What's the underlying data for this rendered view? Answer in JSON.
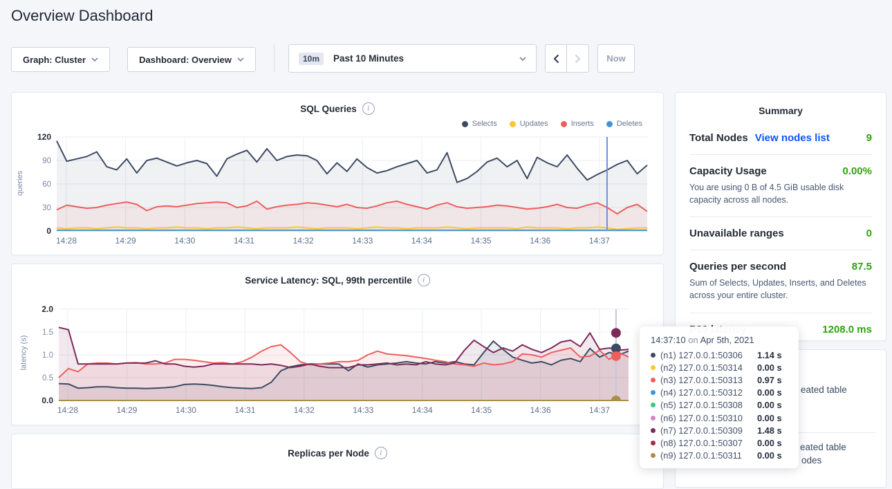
{
  "page": {
    "title": "Overview Dashboard"
  },
  "toolbar": {
    "graph_label": "Graph: Cluster",
    "dashboard_label": "Dashboard: Overview",
    "time_badge": "10m",
    "time_range": "Past 10 Minutes",
    "now_label": "Now"
  },
  "summary": {
    "title": "Summary",
    "rows": [
      {
        "label": "Total Nodes",
        "link": "View nodes list",
        "value": "9"
      },
      {
        "label": "Capacity Usage",
        "value": "0.00%",
        "description": "You are using 0 B of 4.5 GiB usable disk capacity across all nodes."
      },
      {
        "label": "Unavailable ranges",
        "value": "0"
      },
      {
        "label": "Queries per second",
        "value": "87.5",
        "description": "Sum of Selects, Updates, Inserts, and Deletes across your entire cluster."
      },
      {
        "label": "P99 latency",
        "value": "1208.0 ms"
      }
    ]
  },
  "tooltip": {
    "time": "14:37:10",
    "on": "on",
    "date": "Apr 5th, 2021",
    "rows": [
      {
        "color": "#3e4a63",
        "label": "(n1) 127.0.0.1:50306",
        "value": "1.14 s"
      },
      {
        "color": "#ffc533",
        "label": "(n2) 127.0.0.1:50314",
        "value": "0.00 s"
      },
      {
        "color": "#ef5e5e",
        "label": "(n3) 127.0.0.1:50313",
        "value": "0.97 s"
      },
      {
        "color": "#4593d2",
        "label": "(n4) 127.0.0.1:50312",
        "value": "0.00 s"
      },
      {
        "color": "#3cc87f",
        "label": "(n5) 127.0.0.1:50308",
        "value": "0.00 s"
      },
      {
        "color": "#d584c4",
        "label": "(n6) 127.0.0.1:50310",
        "value": "0.00 s"
      },
      {
        "color": "#7c2959",
        "label": "(n7) 127.0.0.1:50309",
        "value": "1.48 s"
      },
      {
        "color": "#a03049",
        "label": "(n8) 127.0.0.1:50307",
        "value": "0.00 s"
      },
      {
        "color": "#ab8d4a",
        "label": "(n9) 127.0.0.1:50311",
        "value": "0.00 s"
      }
    ]
  },
  "events": {
    "fragments": [
      {
        "text": "eated table"
      },
      {
        "text": "eated table"
      },
      {
        "text": "odes"
      }
    ]
  },
  "chart_data": [
    {
      "type": "line",
      "title": "SQL Queries",
      "ylabel": "queries",
      "ylim": [
        0,
        120
      ],
      "yticks": [
        0,
        30,
        60,
        90,
        120
      ],
      "ytick_decimals": 0,
      "grid": true,
      "legend_position": "top-right",
      "x_ticks": [
        "14:28",
        "14:29",
        "14:30",
        "14:31",
        "14:32",
        "14:33",
        "14:34",
        "14:35",
        "14:36",
        "14:37"
      ],
      "draw_order": [
        0,
        2,
        1,
        3
      ],
      "series": [
        {
          "name": "Selects",
          "color": "#3e4a63",
          "fill": "rgba(62,74,99,0.08)",
          "values": [
            115,
            89,
            92,
            95,
            101,
            82,
            78,
            92,
            74,
            90,
            93,
            88,
            83,
            87,
            90,
            86,
            70,
            92,
            98,
            103,
            88,
            105,
            90,
            95,
            97,
            96,
            90,
            73,
            87,
            76,
            92,
            81,
            74,
            77,
            82,
            86,
            90,
            74,
            78,
            100,
            62,
            67,
            76,
            88,
            93,
            82,
            90,
            67,
            94,
            87,
            82,
            97,
            80,
            65,
            72,
            78,
            85,
            90,
            73,
            84
          ]
        },
        {
          "name": "Updates",
          "color": "#ffc533",
          "values": [
            4,
            3,
            4,
            4,
            3,
            4,
            5,
            4,
            4,
            3,
            4,
            4,
            5,
            4,
            4,
            3,
            4,
            4,
            5,
            4,
            3,
            4,
            4,
            4,
            5,
            4,
            3,
            4,
            4,
            4,
            3,
            4,
            5,
            4,
            4,
            3,
            4,
            4,
            4,
            5,
            4,
            3,
            4,
            4,
            4,
            4,
            3,
            5,
            4,
            4,
            4,
            3,
            4,
            4,
            5,
            4,
            2,
            3,
            4,
            4
          ]
        },
        {
          "name": "Inserts",
          "color": "#ef5e5e",
          "fill": "rgba(239,94,94,0.08)",
          "values": [
            27,
            33,
            31,
            29,
            30,
            33,
            35,
            37,
            34,
            26,
            31,
            32,
            31,
            33,
            35,
            36,
            37,
            36,
            30,
            32,
            38,
            28,
            31,
            33,
            34,
            36,
            35,
            33,
            31,
            34,
            30,
            29,
            32,
            36,
            38,
            34,
            31,
            28,
            33,
            36,
            31,
            29,
            30,
            31,
            33,
            32,
            30,
            28,
            29,
            31,
            34,
            30,
            29,
            33,
            36,
            30,
            22,
            30,
            34,
            25
          ]
        },
        {
          "name": "Deletes",
          "color": "#4593d2",
          "values": [
            1,
            1,
            1,
            1,
            1,
            1,
            1,
            1,
            1,
            1,
            1,
            1,
            1,
            1,
            1,
            1,
            1,
            1,
            1,
            1,
            1,
            1,
            1,
            1,
            1,
            1,
            1,
            1,
            1,
            1,
            1,
            1,
            1,
            1,
            1,
            1,
            1,
            1,
            1,
            1,
            1,
            1,
            1,
            1,
            1,
            1,
            1,
            1,
            1,
            1,
            1,
            1,
            1,
            1,
            1,
            1,
            1,
            1,
            1,
            1
          ]
        }
      ],
      "hover": {
        "time": "14:37:10",
        "x_frac": 0.932,
        "line_color": "#6991e3"
      }
    },
    {
      "type": "line",
      "title": "Service Latency: SQL, 99th percentile",
      "ylabel": "latency (s)",
      "ylim": [
        0,
        2.0
      ],
      "yticks": [
        0,
        0.5,
        1.0,
        1.5,
        2.0
      ],
      "ytick_decimals": 1,
      "grid": true,
      "x_ticks": [
        "14:28",
        "14:29",
        "14:30",
        "14:31",
        "14:32",
        "14:33",
        "14:34",
        "14:35",
        "14:36",
        "14:37"
      ],
      "draw_order": [
        0,
        1,
        2,
        3
      ],
      "series": [
        {
          "name": "(n1) 127.0.0.1:50306",
          "color": "#3e4a63",
          "fill": "rgba(62,74,99,0.10)",
          "values": [
            0.37,
            0.36,
            0.27,
            0.28,
            0.3,
            0.3,
            0.28,
            0.27,
            0.27,
            0.26,
            0.27,
            0.28,
            0.3,
            0.35,
            0.36,
            0.35,
            0.33,
            0.3,
            0.28,
            0.27,
            0.26,
            0.28,
            0.4,
            0.65,
            0.74,
            0.78,
            0.8,
            0.8,
            0.8,
            0.8,
            0.65,
            0.8,
            0.73,
            0.78,
            0.8,
            0.82,
            0.85,
            0.82,
            0.8,
            0.85,
            0.82,
            0.85,
            0.8,
            0.78,
            1.05,
            1.3,
            1.12,
            0.95,
            0.88,
            0.82,
            0.85,
            0.78,
            0.88,
            0.92,
            0.85,
            1.14,
            0.95,
            1.05,
            1.0,
            1.08
          ]
        },
        {
          "name": "(n3) 127.0.0.1:50313",
          "color": "#ef5e5e",
          "fill": "rgba(239,94,94,0.10)",
          "values": [
            0.5,
            0.7,
            0.63,
            0.8,
            0.82,
            0.82,
            0.8,
            0.82,
            0.83,
            0.8,
            0.8,
            0.82,
            0.9,
            0.9,
            0.88,
            0.85,
            0.82,
            0.83,
            0.8,
            0.85,
            0.95,
            1.08,
            1.18,
            1.22,
            1.05,
            0.85,
            0.78,
            0.8,
            0.82,
            0.85,
            0.85,
            0.88,
            1.0,
            1.08,
            1.02,
            1.0,
            0.98,
            0.95,
            0.92,
            0.88,
            0.85,
            0.8,
            0.78,
            0.75,
            0.82,
            0.78,
            0.8,
            0.85,
            1.02,
            1.0,
            0.95,
            1.05,
            1.1,
            1.15,
            0.95,
            0.97,
            1.1,
            0.9,
            1.05,
            0.95
          ]
        },
        {
          "name": "(n7) 127.0.0.1:50309",
          "color": "#7c2959",
          "fill": "rgba(124,41,89,0.10)",
          "values": [
            1.6,
            1.55,
            0.8,
            0.8,
            0.8,
            0.8,
            0.8,
            0.82,
            0.82,
            0.82,
            0.87,
            0.8,
            0.8,
            0.75,
            0.73,
            0.75,
            0.8,
            0.8,
            0.8,
            0.8,
            0.8,
            0.78,
            0.8,
            0.77,
            0.72,
            0.75,
            0.8,
            0.75,
            0.72,
            0.72,
            0.72,
            0.78,
            0.78,
            0.8,
            0.82,
            0.78,
            0.8,
            0.78,
            0.85,
            0.8,
            0.78,
            0.82,
            1.1,
            1.32,
            1.18,
            1.05,
            1.15,
            1.08,
            1.22,
            1.12,
            1.05,
            1.15,
            1.28,
            1.32,
            1.18,
            1.48,
            1.12,
            1.15,
            1.1,
            1.12
          ]
        },
        {
          "name": "(n2,n4,n5,n6,n8,n9)",
          "color": "#ab8d4a",
          "values": [
            0,
            0,
            0,
            0,
            0,
            0,
            0,
            0,
            0,
            0,
            0,
            0,
            0,
            0,
            0,
            0,
            0,
            0,
            0,
            0,
            0,
            0,
            0,
            0,
            0,
            0,
            0,
            0,
            0,
            0,
            0,
            0,
            0,
            0,
            0,
            0,
            0,
            0,
            0,
            0,
            0,
            0,
            0,
            0,
            0,
            0,
            0,
            0,
            0,
            0,
            0,
            0,
            0,
            0,
            0,
            0,
            0,
            0,
            0,
            0
          ]
        }
      ],
      "hover": {
        "time": "14:37:10",
        "x_frac": 0.978,
        "line_color": "#c2c7d2",
        "dots": [
          {
            "value": 1.48,
            "color": "#7c2959"
          },
          {
            "value": 1.14,
            "color": "#3e4a63"
          },
          {
            "value": 0.97,
            "color": "#ef5e5e"
          },
          {
            "value": 0.0,
            "color": "#ab8d4a"
          }
        ]
      }
    },
    {
      "type": "line",
      "title": "Replicas per Node",
      "series": []
    }
  ]
}
